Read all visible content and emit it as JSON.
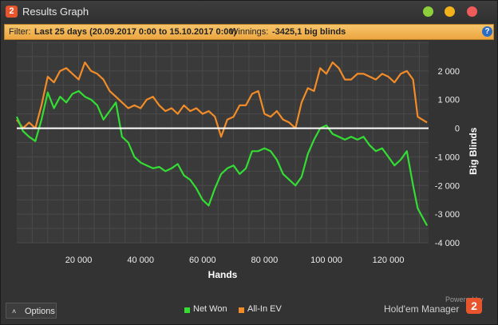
{
  "window": {
    "app_icon": "2",
    "title": "Results Graph"
  },
  "filter": {
    "label": "Filter:",
    "range": "Last 25 days (20.09.2017 0:00 to 15.10.2017 0:00)",
    "winnings_label": "Winnings:",
    "winnings_value": "-3425,1 big blinds",
    "help_icon": "?"
  },
  "options": {
    "label": "Options",
    "chevron": "˄"
  },
  "legend": [
    {
      "label": "Net Won",
      "color": "#33dd33"
    },
    {
      "label": "All-In EV",
      "color": "#f28c28"
    }
  ],
  "branding": {
    "powered_by": "Powered by",
    "name": "Hold'em Manager",
    "icon": "2"
  },
  "chart_data": {
    "type": "line",
    "title": "",
    "xlabel": "Hands",
    "ylabel": "Big Blinds",
    "xlim": [
      0,
      133000
    ],
    "ylim": [
      -4000,
      3000
    ],
    "x_ticks": [
      20000,
      40000,
      60000,
      80000,
      100000,
      120000
    ],
    "x_tick_labels": [
      "20 000",
      "40 000",
      "60 000",
      "80 000",
      "100 000",
      "120 000"
    ],
    "y_ticks": [
      2000,
      1000,
      0,
      -1000,
      -2000,
      -3000,
      -4000
    ],
    "y_tick_labels": [
      "2 000",
      "1 000",
      "0",
      "-1 000",
      "-2 000",
      "-3 000",
      "-4 000"
    ],
    "grid": true,
    "legend_position": "bottom-center",
    "x": [
      0,
      2000,
      4000,
      6000,
      8000,
      10000,
      12000,
      14000,
      16000,
      18000,
      20000,
      22000,
      24000,
      26000,
      28000,
      30000,
      32000,
      34000,
      36000,
      38000,
      40000,
      42000,
      44000,
      46000,
      48000,
      50000,
      52000,
      54000,
      56000,
      58000,
      60000,
      62000,
      64000,
      66000,
      68000,
      70000,
      72000,
      74000,
      76000,
      78000,
      80000,
      82000,
      84000,
      86000,
      88000,
      90000,
      92000,
      94000,
      96000,
      98000,
      100000,
      102000,
      104000,
      106000,
      108000,
      110000,
      112000,
      114000,
      116000,
      118000,
      120000,
      122000,
      124000,
      126000,
      128000,
      129500,
      131000,
      132500
    ],
    "series": [
      {
        "name": "Net Won",
        "color": "#33dd33",
        "values": [
          400,
          -100,
          -300,
          -450,
          300,
          1250,
          700,
          1100,
          900,
          1200,
          1300,
          1100,
          1000,
          800,
          300,
          600,
          900,
          -300,
          -500,
          -1000,
          -1200,
          -1300,
          -1400,
          -1350,
          -1500,
          -1400,
          -1250,
          -1650,
          -1800,
          -2100,
          -2500,
          -2700,
          -2100,
          -1600,
          -1400,
          -1300,
          -1600,
          -1400,
          -800,
          -800,
          -700,
          -800,
          -1100,
          -1600,
          -1800,
          -2000,
          -1700,
          -900,
          -400,
          0,
          100,
          -200,
          -300,
          -400,
          -300,
          -400,
          -300,
          -600,
          -800,
          -700,
          -1000,
          -1300,
          -1100,
          -800,
          -2000,
          -2800,
          -3100,
          -3400
        ]
      },
      {
        "name": "All-In EV",
        "color": "#f28c28",
        "values": [
          300,
          0,
          200,
          0,
          800,
          1800,
          1600,
          2000,
          2100,
          1900,
          1700,
          2300,
          2000,
          1900,
          1700,
          1300,
          1100,
          900,
          700,
          800,
          700,
          1000,
          1100,
          800,
          600,
          700,
          500,
          800,
          600,
          700,
          500,
          600,
          400,
          -300,
          300,
          400,
          800,
          800,
          1200,
          1300,
          500,
          400,
          600,
          300,
          200,
          0,
          900,
          1400,
          1300,
          2100,
          1900,
          2300,
          2100,
          1700,
          1700,
          1900,
          1900,
          1800,
          1700,
          1900,
          1800,
          1600,
          1900,
          2000,
          1700,
          400,
          300,
          200
        ]
      }
    ]
  }
}
